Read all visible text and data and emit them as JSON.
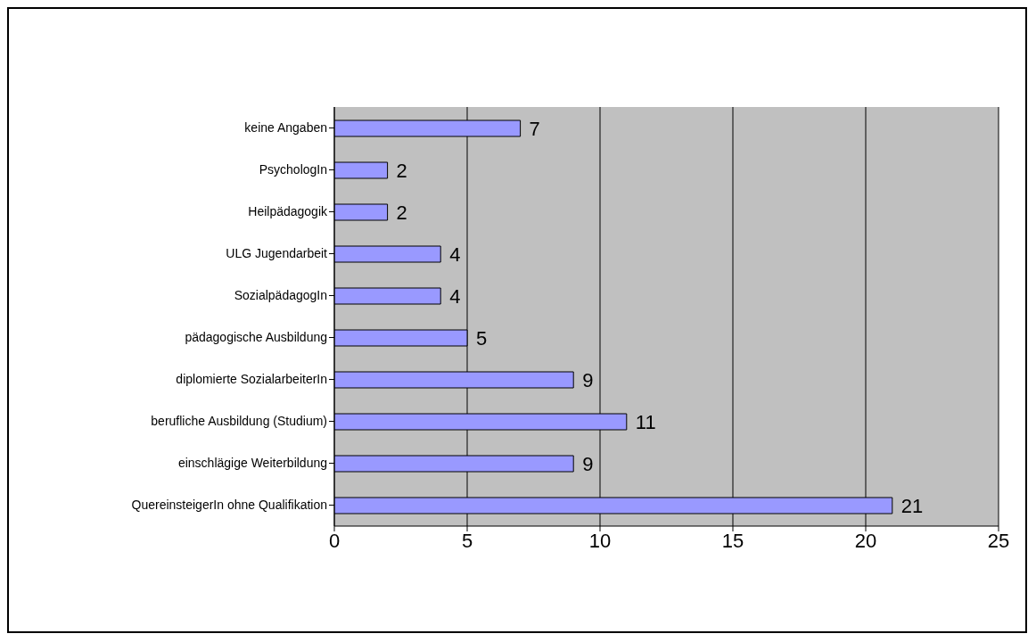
{
  "chart_data": {
    "type": "bar",
    "orientation": "horizontal",
    "categories": [
      "keine Angaben",
      "PsychologIn",
      "Heilpädagogik",
      "ULG Jugendarbeit",
      "SozialpädagogIn",
      "pädagogische Ausbildung",
      "diplomierte SozialarbeiterIn",
      "berufliche Ausbildung (Studium)",
      "einschlägige Weiterbildung",
      "QuereinsteigerIn ohne Qualifikation"
    ],
    "values": [
      7,
      2,
      2,
      4,
      4,
      5,
      9,
      11,
      9,
      21
    ],
    "color": "#9999ff",
    "xlim": [
      0,
      25
    ],
    "xticks": [
      0,
      5,
      10,
      15,
      20,
      25
    ],
    "grid": "x",
    "data_labels": true
  }
}
